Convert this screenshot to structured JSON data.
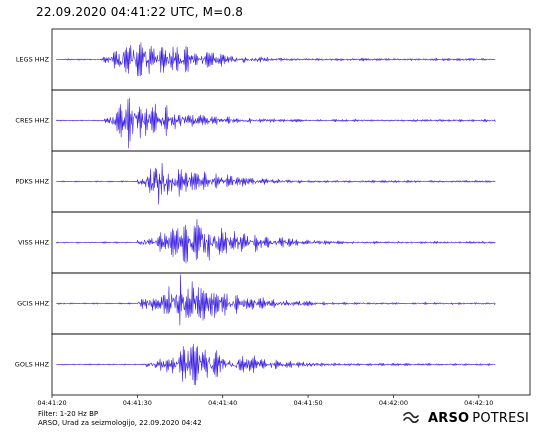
{
  "header": {
    "title": "22.09.2020  04:41:22 UTC, M=0.8"
  },
  "footer": {
    "filter": "Filter: 1-20 Hz BP",
    "credit": "ARSO, Urad za seizmologijo, 22.09.2020  04:42"
  },
  "logo": {
    "bold": "ARSO",
    "thin": "POTRESI",
    "icon": "arso-logo-icon"
  },
  "colors": {
    "trace": "#3a1fe0",
    "frame": "#000000"
  },
  "chart_data": {
    "type": "line",
    "title": "22.09.2020  04:41:22 UTC, M=0.8",
    "xlabel": "",
    "ylabel": "",
    "x_range": [
      "04:41:20",
      "04:42:16"
    ],
    "x_ticks": [
      "04:41:20",
      "04:41:30",
      "04:41:40",
      "04:41:50",
      "04:42:00",
      "04:42:10"
    ],
    "grid": false,
    "series": [
      {
        "name": "LEGS HHZ",
        "onset": "04:41:26",
        "peak_time": "04:41:30",
        "relative_peak": 1.0
      },
      {
        "name": "CRES HHZ",
        "onset": "04:41:26",
        "peak_time": "04:41:29",
        "relative_peak": 0.95
      },
      {
        "name": "PDKS HHZ",
        "onset": "04:41:30",
        "peak_time": "04:41:32",
        "relative_peak": 0.9
      },
      {
        "name": "VISS HHZ",
        "onset": "04:41:30",
        "peak_time": "04:41:37",
        "relative_peak": 0.9
      },
      {
        "name": "GCIS HHZ",
        "onset": "04:41:30",
        "peak_time": "04:41:35",
        "relative_peak": 1.0
      },
      {
        "name": "GOLS HHZ",
        "onset": "04:41:31",
        "peak_time": "04:41:36",
        "relative_peak": 0.9
      }
    ]
  }
}
